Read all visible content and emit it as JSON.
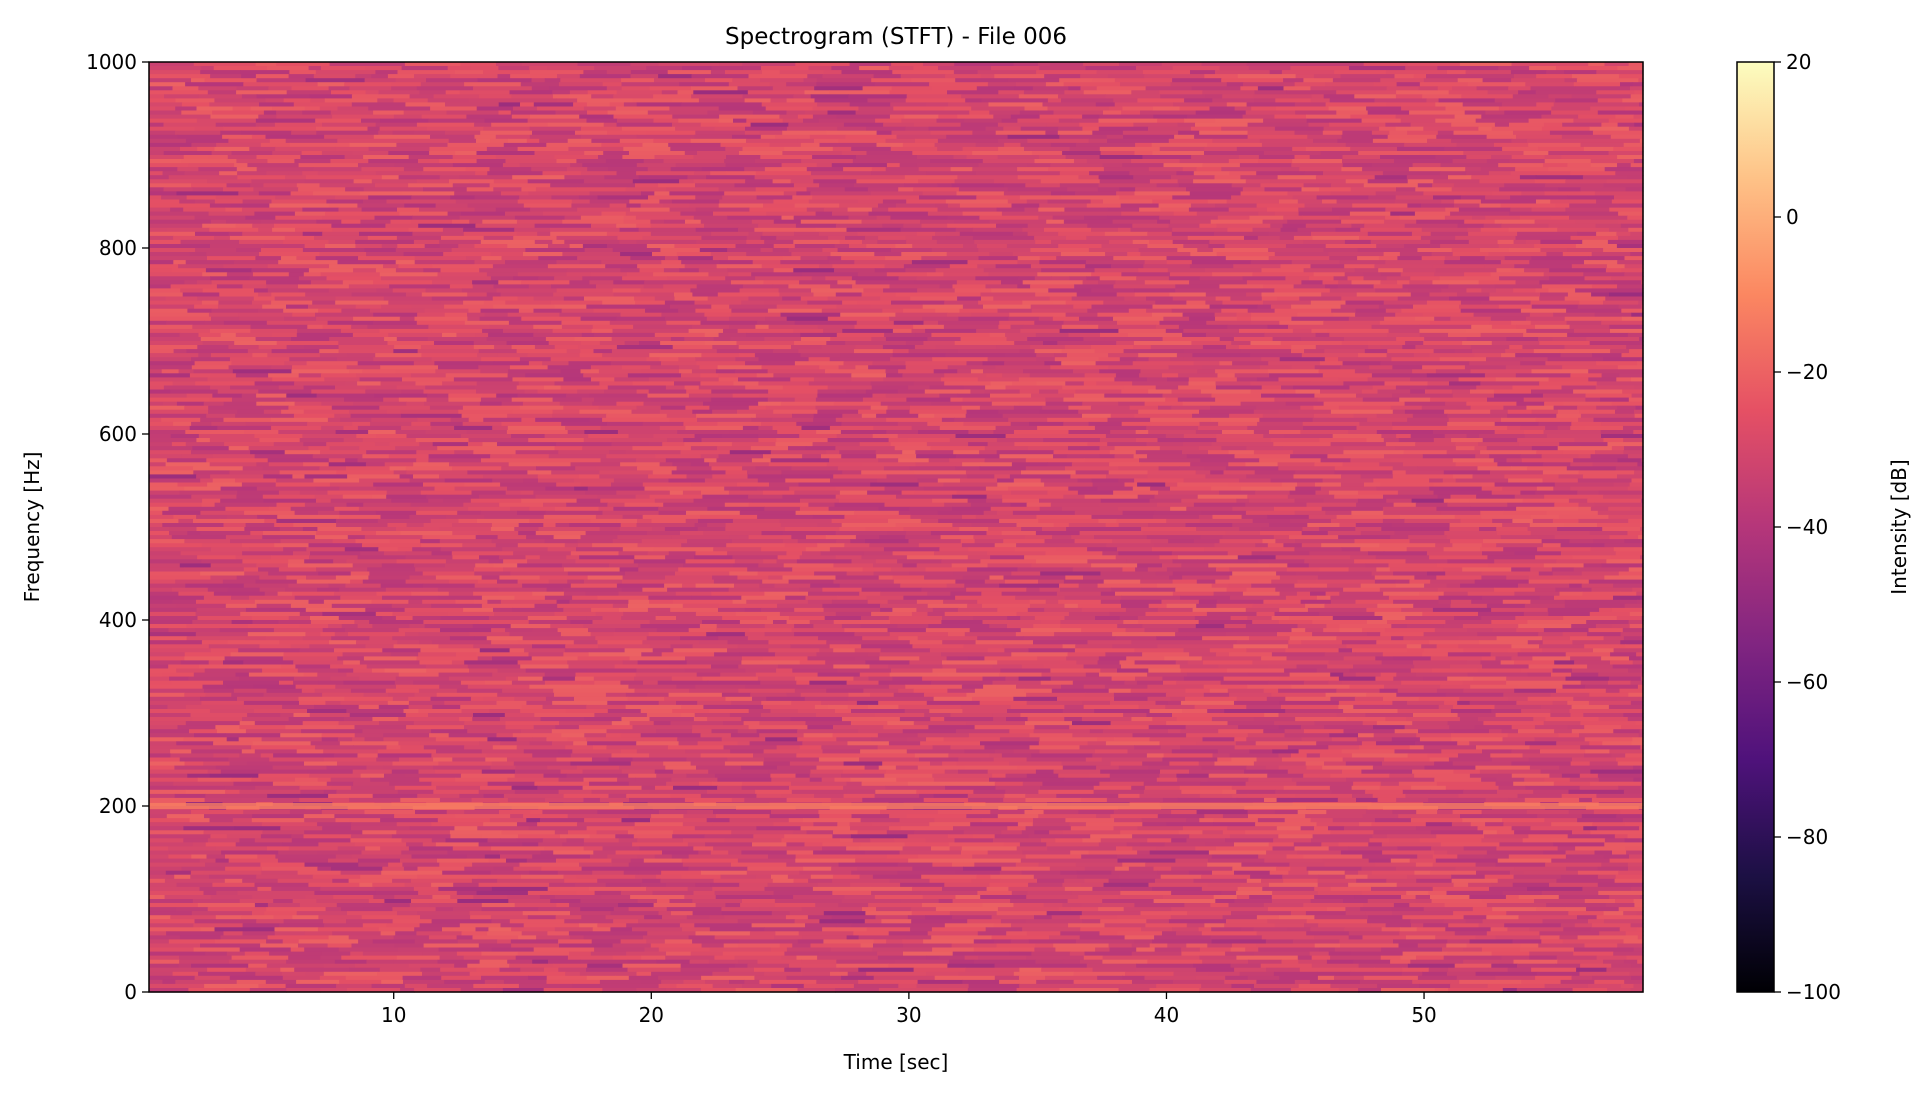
{
  "chart_data": {
    "type": "heatmap",
    "title": "Spectrogram (STFT) - File 006",
    "xlabel": "Time [sec]",
    "ylabel": "Frequency [Hz]",
    "xlim": [
      0.5,
      58.5
    ],
    "ylim": [
      0,
      1000
    ],
    "xticks": [
      10,
      20,
      30,
      40,
      50
    ],
    "yticks": [
      0,
      200,
      400,
      600,
      800,
      1000
    ],
    "colormap": "magma",
    "colorbar": {
      "label": "Intensity [dB]",
      "range": [
        -100,
        20
      ],
      "ticks": [
        20,
        0,
        -20,
        -40,
        -60,
        -80,
        -100
      ],
      "tick_labels": [
        "20",
        "0",
        "−20",
        "−40",
        "−60",
        "−80",
        "−100"
      ]
    },
    "background_level_db": [
      -40,
      -20
    ],
    "features": [
      {
        "type": "tone",
        "frequency_hz": 200,
        "time_range_sec": [
          0.5,
          58.5
        ],
        "level_db": -12
      }
    ],
    "grid": false
  }
}
